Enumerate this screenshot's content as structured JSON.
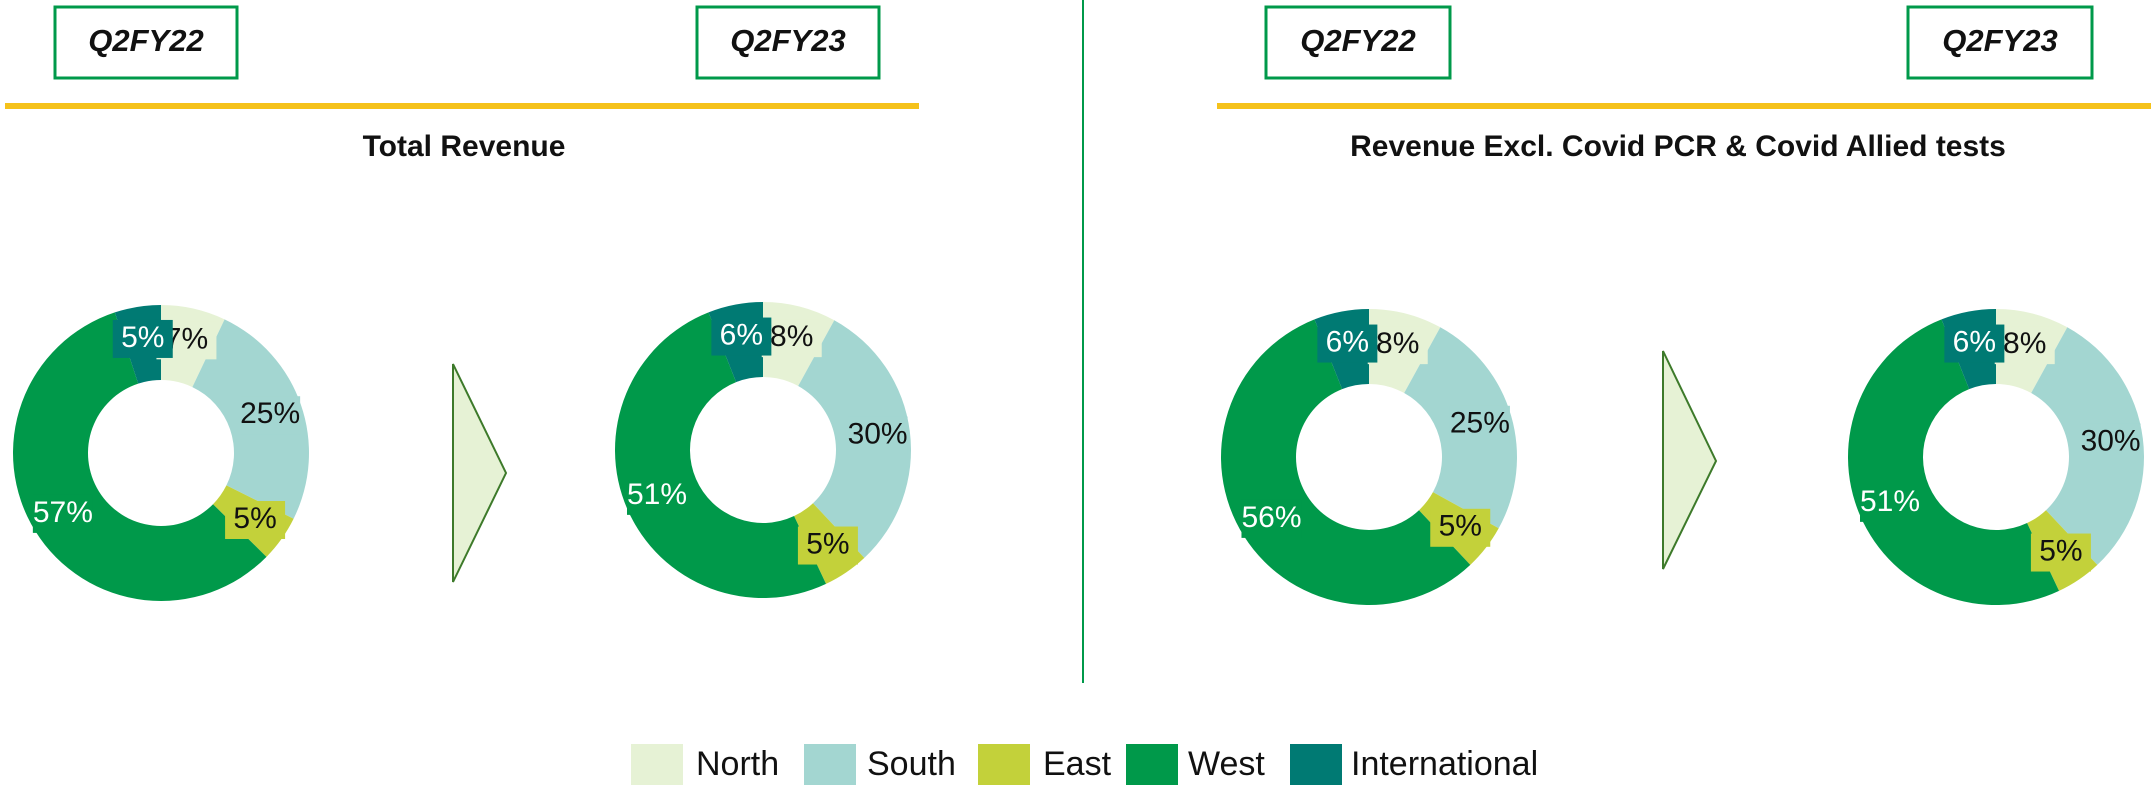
{
  "categories": [
    "North",
    "South",
    "East",
    "West",
    "International"
  ],
  "colors": [
    "#e6f2d5",
    "#a3d6d1",
    "#c3d13a",
    "#00994a",
    "#007a73"
  ],
  "label_colors": [
    "#111111",
    "#111111",
    "#111111",
    "#ffffff",
    "#ffffff"
  ],
  "panels": [
    {
      "title": "Total Revenue"
    },
    {
      "title": "Revenue Excl. Covid PCR & Covid Allied tests"
    }
  ],
  "chart_data": [
    {
      "type": "pie",
      "title": "Q2FY22",
      "values": [
        7,
        25,
        5,
        57,
        5
      ],
      "value_labels": [
        "7%",
        "25%",
        "5%",
        "57%",
        "5%"
      ]
    },
    {
      "type": "pie",
      "title": "Q2FY23",
      "values": [
        8,
        30,
        5,
        51,
        6
      ],
      "value_labels": [
        "8%",
        "30%",
        "5%",
        "51%",
        "6%"
      ]
    },
    {
      "type": "pie",
      "title": "Q2FY22",
      "values": [
        8,
        25,
        5,
        56,
        6
      ],
      "value_labels": [
        "8%",
        "25%",
        "5%",
        "56%",
        "6%"
      ]
    },
    {
      "type": "pie",
      "title": "Q2FY23",
      "values": [
        8,
        30,
        5,
        51,
        6
      ],
      "value_labels": [
        "8%",
        "30%",
        "5%",
        "51%",
        "6%"
      ]
    }
  ]
}
